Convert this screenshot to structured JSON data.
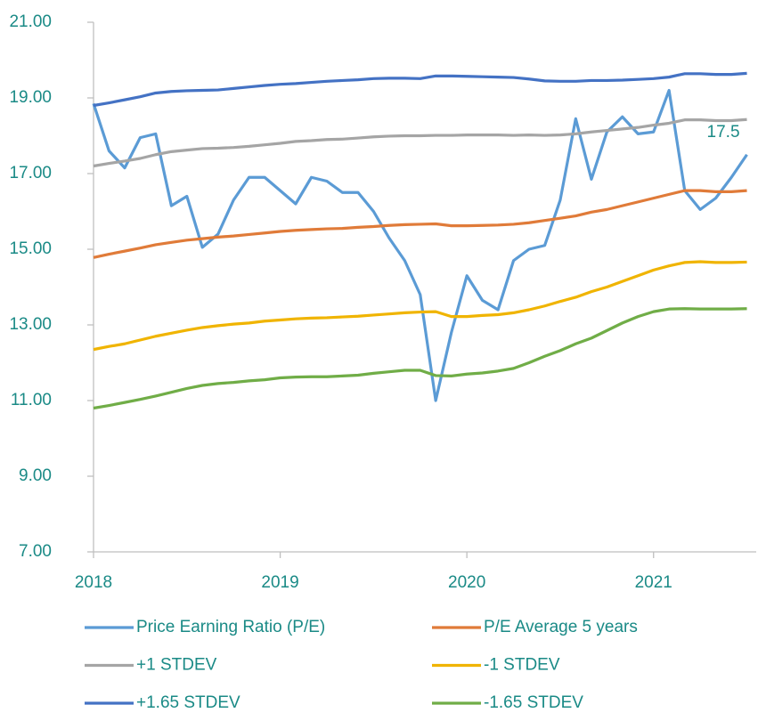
{
  "chart_data": {
    "type": "line",
    "x": [
      2018,
      2018.083,
      2018.167,
      2018.25,
      2018.333,
      2018.417,
      2018.5,
      2018.583,
      2018.667,
      2018.75,
      2018.833,
      2018.917,
      2019,
      2019.083,
      2019.167,
      2019.25,
      2019.333,
      2019.417,
      2019.5,
      2019.583,
      2019.667,
      2019.75,
      2019.833,
      2019.917,
      2020,
      2020.083,
      2020.167,
      2020.25,
      2020.333,
      2020.417,
      2020.5,
      2020.583,
      2020.667,
      2020.75,
      2020.833,
      2020.917,
      2021,
      2021.083,
      2021.167,
      2021.25,
      2021.333,
      2021.417,
      2021.5
    ],
    "xlim": [
      2018,
      2021.55
    ],
    "xticks": [
      2018,
      2019,
      2020,
      2021
    ],
    "ylim": [
      7,
      21
    ],
    "yticks": [
      {
        "value": 7,
        "label": "7.00"
      },
      {
        "value": 9,
        "label": "9.00"
      },
      {
        "value": 11,
        "label": "11.00"
      },
      {
        "value": 13,
        "label": "13.00"
      },
      {
        "value": 15,
        "label": "15.00"
      },
      {
        "value": 17,
        "label": "17.00"
      },
      {
        "value": 19,
        "label": "19.00"
      },
      {
        "value": 21,
        "label": "21.00"
      }
    ],
    "series": [
      {
        "name": "Price Earning Ratio (P/E)",
        "color": "#5b9bd5",
        "show_last_label": true,
        "values": [
          18.85,
          17.6,
          17.15,
          17.95,
          18.05,
          16.15,
          16.4,
          15.05,
          15.4,
          16.3,
          16.9,
          16.9,
          16.55,
          16.2,
          16.9,
          16.8,
          16.5,
          16.5,
          16.0,
          15.3,
          14.7,
          13.8,
          11.0,
          12.8,
          14.3,
          13.65,
          13.4,
          14.7,
          15.0,
          15.1,
          16.3,
          18.45,
          16.85,
          18.1,
          18.5,
          18.05,
          18.1,
          19.2,
          16.55,
          16.05,
          16.35,
          16.9,
          17.5
        ]
      },
      {
        "name": "P/E Average 5 years",
        "color": "#e07b39",
        "values": [
          14.78,
          14.87,
          14.95,
          15.03,
          15.12,
          15.18,
          15.24,
          15.28,
          15.32,
          15.35,
          15.39,
          15.43,
          15.47,
          15.5,
          15.52,
          15.54,
          15.55,
          15.58,
          15.6,
          15.63,
          15.65,
          15.66,
          15.67,
          15.62,
          15.62,
          15.63,
          15.64,
          15.66,
          15.7,
          15.76,
          15.82,
          15.88,
          15.98,
          16.05,
          16.15,
          16.25,
          16.35,
          16.45,
          16.55,
          16.55,
          16.52,
          16.52,
          16.55
        ]
      },
      {
        "name": "+1 STDEV",
        "color": "#a5a5a5",
        "values": [
          17.2,
          17.27,
          17.33,
          17.4,
          17.5,
          17.58,
          17.62,
          17.66,
          17.67,
          17.69,
          17.72,
          17.76,
          17.8,
          17.85,
          17.87,
          17.9,
          17.91,
          17.94,
          17.97,
          17.99,
          18.0,
          18.0,
          18.01,
          18.01,
          18.02,
          18.02,
          18.02,
          18.01,
          18.02,
          18.01,
          18.02,
          18.05,
          18.1,
          18.14,
          18.18,
          18.22,
          18.28,
          18.33,
          18.42,
          18.42,
          18.4,
          18.4,
          18.43
        ]
      },
      {
        "name": "-1 STDEV",
        "color": "#f0b400",
        "values": [
          12.35,
          12.43,
          12.5,
          12.6,
          12.7,
          12.78,
          12.86,
          12.93,
          12.98,
          13.02,
          13.05,
          13.1,
          13.13,
          13.16,
          13.18,
          13.19,
          13.21,
          13.23,
          13.26,
          13.29,
          13.32,
          13.34,
          13.35,
          13.22,
          13.22,
          13.25,
          13.27,
          13.32,
          13.4,
          13.5,
          13.62,
          13.73,
          13.88,
          14.0,
          14.15,
          14.3,
          14.45,
          14.56,
          14.65,
          14.67,
          14.65,
          14.65,
          14.66
        ]
      },
      {
        "name": "+1.65 STDEV",
        "color": "#4472c4",
        "values": [
          18.8,
          18.87,
          18.95,
          19.03,
          19.13,
          19.17,
          19.19,
          19.2,
          19.21,
          19.25,
          19.29,
          19.33,
          19.36,
          19.38,
          19.41,
          19.44,
          19.46,
          19.48,
          19.51,
          19.52,
          19.52,
          19.51,
          19.58,
          19.58,
          19.57,
          19.56,
          19.55,
          19.54,
          19.5,
          19.45,
          19.44,
          19.44,
          19.46,
          19.46,
          19.47,
          19.49,
          19.51,
          19.55,
          19.64,
          19.64,
          19.62,
          19.62,
          19.65
        ]
      },
      {
        "name": "-1.65 STDEV",
        "color": "#70ad47",
        "values": [
          10.8,
          10.87,
          10.95,
          11.03,
          11.12,
          11.22,
          11.32,
          11.4,
          11.45,
          11.48,
          11.52,
          11.55,
          11.6,
          11.62,
          11.63,
          11.63,
          11.65,
          11.67,
          11.72,
          11.76,
          11.8,
          11.8,
          11.66,
          11.65,
          11.7,
          11.73,
          11.78,
          11.85,
          12.0,
          12.17,
          12.32,
          12.5,
          12.65,
          12.85,
          13.05,
          13.22,
          13.35,
          13.42,
          13.43,
          13.42,
          13.42,
          13.42,
          13.43
        ]
      }
    ]
  }
}
